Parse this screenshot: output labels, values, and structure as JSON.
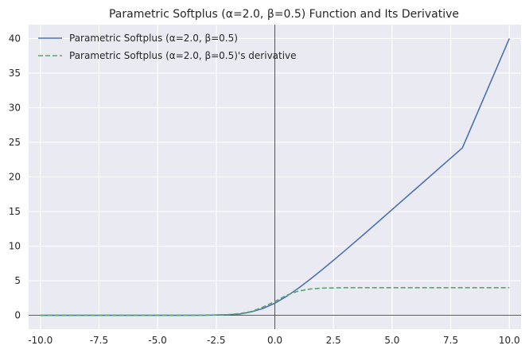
{
  "chart_data": {
    "type": "line",
    "title": "Parametric Softplus (α=2.0, β=0.5) Function and Its Derivative",
    "xlabel": "",
    "ylabel": "",
    "xlim": [
      -10.5,
      10.5
    ],
    "ylim": [
      -2,
      42
    ],
    "xticks": [
      -10.0,
      -7.5,
      -5.0,
      -2.5,
      0.0,
      2.5,
      5.0,
      7.5,
      10.0
    ],
    "xtick_labels": [
      "-10.0",
      "-7.5",
      "-5.0",
      "-2.5",
      "0.0",
      "2.5",
      "5.0",
      "7.5",
      "10.0"
    ],
    "yticks": [
      0,
      5,
      10,
      15,
      20,
      25,
      30,
      35,
      40
    ],
    "ytick_labels": [
      "0",
      "5",
      "10",
      "15",
      "20",
      "25",
      "30",
      "35",
      "40"
    ],
    "grid": true,
    "legend_position": "top-left",
    "background": "#eaeaf2",
    "series": [
      {
        "name": "Parametric Softplus (α=2.0, β=0.5)",
        "color": "#4c72b0",
        "style": "solid",
        "x": [
          -10,
          -8,
          -6,
          -4,
          -3,
          -2,
          -1.5,
          -1,
          -0.5,
          0,
          0.5,
          1,
          1.5,
          2,
          2.5,
          3,
          4,
          5,
          6,
          8,
          10
        ],
        "y": [
          0.0,
          0.0,
          0.0,
          0.001,
          0.01,
          0.07,
          0.19,
          0.5,
          1.0,
          1.75,
          2.75,
          3.9,
          5.2,
          6.55,
          7.95,
          9.38,
          12.3,
          15.28,
          18.25,
          24.2,
          40.0
        ]
      },
      {
        "name": "Parametric Softplus (α=2.0, β=0.5)'s derivative",
        "color": "#55a868",
        "style": "dashed",
        "x": [
          -10,
          -8,
          -6,
          -4,
          -3,
          -2,
          -1.5,
          -1,
          -0.5,
          0,
          0.5,
          1,
          1.5,
          2,
          2.5,
          3,
          4,
          5,
          6,
          8,
          10
        ],
        "y": [
          0.0,
          0.0,
          0.0,
          0.01,
          0.03,
          0.1,
          0.25,
          0.55,
          1.2,
          2.0,
          2.9,
          3.5,
          3.8,
          3.93,
          3.97,
          3.99,
          4.0,
          4.0,
          4.0,
          4.0,
          4.0
        ]
      }
    ]
  }
}
